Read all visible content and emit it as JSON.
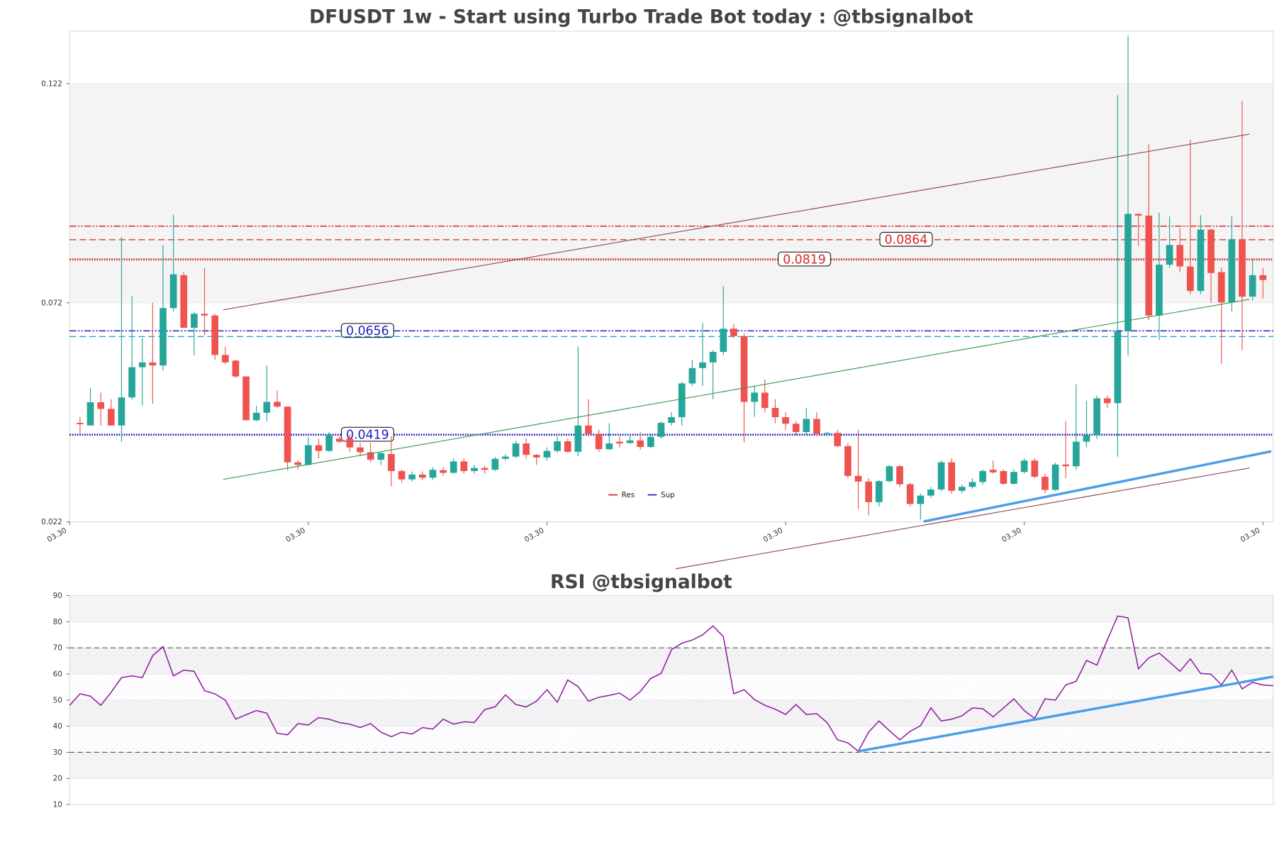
{
  "chart_data": [
    {
      "type": "candlestick",
      "title": "DFUSDT 1w - Start using Turbo Trade Bot today : @tbsignalbot",
      "xlim": [
        -1,
        115
      ],
      "xticks": [
        {
          "value": -1,
          "label": "03.30"
        },
        {
          "value": 22,
          "label": "03.30"
        },
        {
          "value": 45,
          "label": "03.30"
        },
        {
          "value": 68,
          "label": "03.30"
        },
        {
          "value": 91,
          "label": "03.30"
        },
        {
          "value": 114,
          "label": "03.30"
        }
      ],
      "ylim": [
        0.022,
        0.134
      ],
      "yticks": [
        0.022,
        0.072,
        0.122
      ],
      "up_color": "#26a69a",
      "down_color": "#ef5350",
      "open": [
        0.0446,
        0.044,
        0.0493,
        0.0478,
        0.044,
        0.0504,
        0.0573,
        0.0584,
        0.0577,
        0.0708,
        0.0783,
        0.0663,
        0.0695,
        0.0691,
        0.0601,
        0.0588,
        0.0552,
        0.0452,
        0.0469,
        0.0494,
        0.0483,
        0.0356,
        0.035,
        0.0395,
        0.0382,
        0.041,
        0.041,
        0.039,
        0.0379,
        0.0362,
        0.0375,
        0.0336,
        0.0317,
        0.0328,
        0.0321,
        0.0338,
        0.0332,
        0.0358,
        0.0336,
        0.0343,
        0.0339,
        0.0364,
        0.0369,
        0.0399,
        0.0373,
        0.0367,
        0.0382,
        0.0404,
        0.038,
        0.044,
        0.0421,
        0.0386,
        0.0403,
        0.04,
        0.0406,
        0.0391,
        0.0414,
        0.0446,
        0.0459,
        0.0536,
        0.0571,
        0.0584,
        0.0608,
        0.0661,
        0.0644,
        0.0494,
        0.0515,
        0.048,
        0.0459,
        0.0444,
        0.0425,
        0.0455,
        0.0421,
        0.0423,
        0.0393,
        0.0325,
        0.0312,
        0.0265,
        0.0313,
        0.0347,
        0.0306,
        0.0261,
        0.028,
        0.0294,
        0.0356,
        0.0291,
        0.03,
        0.0311,
        0.0339,
        0.0336,
        0.0307,
        0.0334,
        0.036,
        0.0323,
        0.0293,
        0.0351,
        0.0347,
        0.0403,
        0.0418,
        0.0502,
        0.0491,
        0.0655,
        0.0923,
        0.0919,
        0.0691,
        0.0807,
        0.0852,
        0.0803,
        0.0747,
        0.0887,
        0.079,
        0.0721,
        0.0865,
        0.0734,
        0.0783
      ],
      "high": [
        0.046,
        0.0525,
        0.0515,
        0.05,
        0.087,
        0.0736,
        0.064,
        0.072,
        0.0852,
        0.0921,
        0.079,
        0.07,
        0.08,
        0.0695,
        0.062,
        0.059,
        0.0552,
        0.0485,
        0.0577,
        0.052,
        0.0483,
        0.036,
        0.0413,
        0.041,
        0.0425,
        0.0415,
        0.042,
        0.04,
        0.04,
        0.038,
        0.0416,
        0.034,
        0.0335,
        0.0335,
        0.0345,
        0.0345,
        0.0365,
        0.0365,
        0.035,
        0.0348,
        0.0368,
        0.0375,
        0.0405,
        0.041,
        0.0375,
        0.039,
        0.0415,
        0.041,
        0.062,
        0.05,
        0.043,
        0.0445,
        0.0415,
        0.042,
        0.0425,
        0.042,
        0.045,
        0.047,
        0.054,
        0.059,
        0.0674,
        0.0612,
        0.0758,
        0.0672,
        0.065,
        0.053,
        0.0545,
        0.05,
        0.047,
        0.045,
        0.048,
        0.047,
        0.0425,
        0.043,
        0.04,
        0.043,
        0.032,
        0.0315,
        0.035,
        0.035,
        0.031,
        0.0285,
        0.03,
        0.036,
        0.0365,
        0.0305,
        0.032,
        0.034,
        0.036,
        0.034,
        0.034,
        0.0365,
        0.0365,
        0.033,
        0.0355,
        0.045,
        0.0534,
        0.0496,
        0.0508,
        0.0508,
        0.1194,
        0.133,
        0.0923,
        0.1082,
        0.0926,
        0.0917,
        0.089,
        0.1093,
        0.092,
        0.089,
        0.08,
        0.0917,
        0.1181,
        0.082,
        0.08
      ],
      "low": [
        0.042,
        0.044,
        0.044,
        0.044,
        0.0403,
        0.05,
        0.0485,
        0.049,
        0.0565,
        0.07,
        0.0663,
        0.06,
        0.0646,
        0.059,
        0.058,
        0.0548,
        0.0452,
        0.045,
        0.045,
        0.048,
        0.0338,
        0.034,
        0.035,
        0.0365,
        0.038,
        0.04,
        0.038,
        0.037,
        0.0356,
        0.035,
        0.0301,
        0.031,
        0.0312,
        0.0315,
        0.0316,
        0.0325,
        0.033,
        0.033,
        0.033,
        0.033,
        0.0336,
        0.036,
        0.0365,
        0.0365,
        0.035,
        0.036,
        0.0378,
        0.0378,
        0.037,
        0.0415,
        0.038,
        0.0384,
        0.039,
        0.0398,
        0.0385,
        0.0388,
        0.041,
        0.044,
        0.044,
        0.053,
        0.053,
        0.05,
        0.06,
        0.064,
        0.0401,
        0.046,
        0.047,
        0.0445,
        0.043,
        0.0418,
        0.042,
        0.0415,
        0.0415,
        0.039,
        0.032,
        0.025,
        0.0235,
        0.0255,
        0.031,
        0.03,
        0.0255,
        0.0225,
        0.0275,
        0.029,
        0.0285,
        0.0285,
        0.0295,
        0.0305,
        0.033,
        0.0305,
        0.0305,
        0.033,
        0.032,
        0.0285,
        0.029,
        0.032,
        0.034,
        0.039,
        0.041,
        0.048,
        0.0369,
        0.06,
        0.085,
        0.068,
        0.0635,
        0.08,
        0.079,
        0.074,
        0.074,
        0.072,
        0.058,
        0.07,
        0.0612,
        0.0725,
        0.073
      ],
      "close": [
        0.0443,
        0.0493,
        0.0478,
        0.044,
        0.0504,
        0.0573,
        0.0584,
        0.0577,
        0.0708,
        0.0785,
        0.0663,
        0.0695,
        0.0691,
        0.0601,
        0.0584,
        0.0552,
        0.0452,
        0.0469,
        0.0494,
        0.0483,
        0.0356,
        0.035,
        0.0395,
        0.0382,
        0.0418,
        0.0403,
        0.039,
        0.0379,
        0.0362,
        0.0377,
        0.0336,
        0.0317,
        0.0328,
        0.0321,
        0.0339,
        0.0332,
        0.0358,
        0.0336,
        0.0343,
        0.0339,
        0.0364,
        0.0369,
        0.0399,
        0.0373,
        0.0367,
        0.0382,
        0.0404,
        0.038,
        0.044,
        0.0421,
        0.0386,
        0.0399,
        0.0399,
        0.0406,
        0.0391,
        0.0414,
        0.0446,
        0.0459,
        0.0536,
        0.0571,
        0.0584,
        0.0608,
        0.0661,
        0.0644,
        0.0494,
        0.0515,
        0.048,
        0.0459,
        0.0444,
        0.0425,
        0.0455,
        0.0421,
        0.0423,
        0.0393,
        0.0325,
        0.0312,
        0.0265,
        0.0313,
        0.0347,
        0.0306,
        0.0261,
        0.028,
        0.0294,
        0.0356,
        0.0291,
        0.03,
        0.0311,
        0.0336,
        0.0333,
        0.0307,
        0.0334,
        0.036,
        0.0323,
        0.0293,
        0.0351,
        0.0347,
        0.0403,
        0.0418,
        0.0502,
        0.0491,
        0.0655,
        0.0923,
        0.0919,
        0.0691,
        0.0807,
        0.0852,
        0.0803,
        0.0747,
        0.0887,
        0.0788,
        0.0721,
        0.0865,
        0.0734,
        0.0783,
        0.0772
      ],
      "resistance": {
        "name": "Res",
        "color": "#d62728",
        "levels": [
          0.0895,
          0.0864,
          0.0819
        ]
      },
      "support": {
        "name": "Sup",
        "color": "#1f1fbf",
        "alt_color": "#17a5c8",
        "levels": [
          0.0656,
          0.0643,
          0.0419
        ]
      },
      "trend_lines": [
        {
          "color": "#8b4a5a",
          "x": [
            13.8,
            112.7
          ],
          "y": [
            0.0704,
            0.1105
          ]
        },
        {
          "color": "#3a9a50",
          "x": [
            13.8,
            112.7
          ],
          "y": [
            0.0317,
            0.0728
          ]
        },
        {
          "color": "#8b4a5a",
          "x": [
            57.4,
            112.7
          ],
          "y": [
            0.0113,
            0.0343
          ]
        },
        {
          "color": "#4a9ee8",
          "x": [
            81.3,
            114.8
          ],
          "y": [
            0.0221,
            0.0381
          ]
        }
      ]
    },
    {
      "type": "line",
      "title": "RSI @tbsignalbot",
      "color": "#8b1a9b",
      "xlim": [
        0,
        116
      ],
      "ylim": [
        10,
        90
      ],
      "yticks": [
        10,
        20,
        30,
        40,
        50,
        60,
        70,
        80,
        90
      ],
      "levels": [
        30,
        70
      ],
      "values": [
        48,
        52.4,
        51.5,
        48,
        53,
        58.6,
        59.3,
        58.6,
        67,
        70.5,
        59.3,
        61.5,
        61,
        53.6,
        52.4,
        50,
        42.7,
        44.4,
        46,
        45,
        37.3,
        36.7,
        41,
        40.5,
        43.3,
        42.7,
        41.4,
        40.8,
        39.5,
        41,
        37.7,
        36,
        37.7,
        37,
        39.5,
        38.9,
        42.7,
        40.8,
        41.7,
        41.4,
        46.4,
        47.4,
        52,
        48.3,
        47.4,
        49.6,
        54,
        49.2,
        57.7,
        55.2,
        49.6,
        51.1,
        51.8,
        52.7,
        50,
        53.3,
        58.3,
        60.2,
        69.3,
        71.8,
        73,
        75,
        78.4,
        74.3,
        52.4,
        54,
        50.2,
        48,
        46.5,
        44.5,
        48.3,
        44.5,
        44.8,
        41.4,
        34.8,
        33.6,
        30.4,
        37.7,
        42,
        38.3,
        34.8,
        38,
        40.2,
        47,
        42,
        42.7,
        44,
        47,
        46.7,
        43.6,
        47,
        50.5,
        46,
        43,
        50.5,
        50,
        55.8,
        57.2,
        65.2,
        63.4,
        73,
        82.2,
        81.5,
        62,
        66.2,
        68,
        64.6,
        61,
        65.8,
        60.2,
        59.9,
        55.8,
        61.5,
        54.3,
        56.8,
        55.8,
        55.5
      ],
      "trend_line": {
        "color": "#4a9ee8",
        "x": [
          76,
          116
        ],
        "y": [
          30.4,
          59
        ]
      }
    }
  ]
}
